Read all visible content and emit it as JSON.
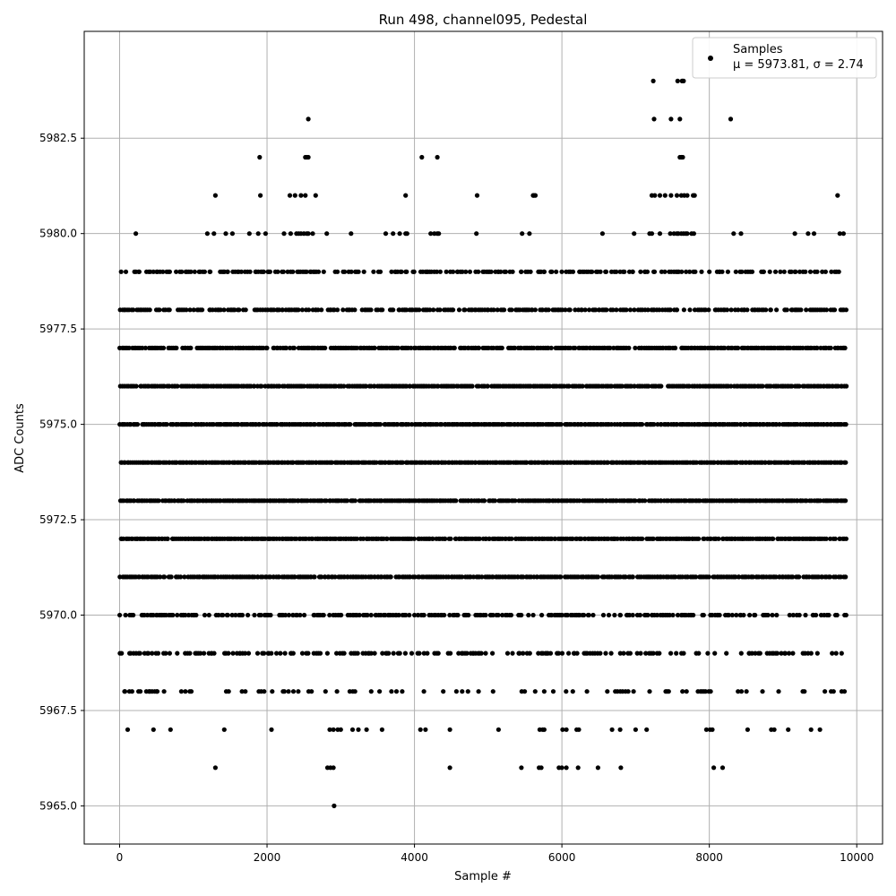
{
  "chart_data": {
    "type": "scatter",
    "title": "Run 498, channel095, Pedestal",
    "xlabel": "Sample #",
    "ylabel": "ADC Counts",
    "xlim": [
      -480,
      10350
    ],
    "ylim": [
      5964.0,
      5985.3
    ],
    "xticks": [
      0,
      2000,
      4000,
      6000,
      8000,
      10000
    ],
    "xtick_labels": [
      "0",
      "2000",
      "4000",
      "6000",
      "8000",
      "10000"
    ],
    "yticks": [
      5965.0,
      5967.5,
      5970.0,
      5972.5,
      5975.0,
      5977.5,
      5980.0,
      5982.5
    ],
    "ytick_labels": [
      "5965.0",
      "5967.5",
      "5970.0",
      "5972.5",
      "5975.0",
      "5977.5",
      "5980.0",
      "5982.5"
    ],
    "grid": true,
    "legend_position": "top-right",
    "marker_color": "#000000",
    "series": [
      {
        "name": "Samples",
        "stats_label": "μ = 5973.81, σ = 2.74",
        "x_range": [
          0,
          9840
        ],
        "mean": 5973.81,
        "std": 2.74,
        "levels": [
          {
            "y": 5984,
            "x": [
              7240,
              7570,
              7630,
              7650
            ]
          },
          {
            "y": 5983,
            "x": [
              2560,
              7250,
              7480,
              7600,
              8290
            ]
          },
          {
            "y": 5982,
            "x": [
              1900,
              2520,
              2540,
              2560,
              4100,
              4310,
              7600,
              7620,
              7640
            ]
          },
          {
            "y": 5981,
            "x": [
              1300,
              1910,
              2310,
              2380,
              2460,
              2520,
              2660,
              3880,
              4850,
              5610,
              5620,
              5640,
              7220,
              7260,
              7330,
              7400,
              7480,
              7560,
              7620,
              7660,
              7700,
              7780,
              7800,
              9740
            ]
          },
          {
            "y": 5980,
            "x": [
              220,
              1190,
              1280,
              1440,
              1530,
              1760,
              1880,
              1980,
              2230,
              2320,
              2400,
              2430,
              2460,
              2500,
              2540,
              2560,
              2620,
              2810,
              3140,
              3610,
              3710,
              3800,
              3880,
              3900,
              4220,
              4270,
              4310,
              4330,
              4840,
              5460,
              5560,
              6550,
              6980,
              7190,
              7220,
              7330,
              7470,
              7520,
              7560,
              7580,
              7620,
              7650,
              7680,
              7700,
              7760,
              7790,
              8330,
              8430,
              9160,
              9340,
              9420,
              9770,
              9820
            ]
          },
          {
            "y": 5967,
            "x": [
              110,
              460,
              690,
              1420,
              2060,
              2850,
              2900,
              2960,
              3000,
              3160,
              3240,
              3350,
              3560,
              4080,
              4150,
              4480,
              5140,
              5700,
              5740,
              5760,
              6010,
              6060,
              6200,
              6230,
              6680,
              6790,
              7000,
              7150,
              7960,
              8010,
              8040,
              8520,
              8840,
              8880,
              9070,
              9380,
              9500
            ]
          },
          {
            "y": 5966,
            "x": [
              1300,
              2820,
              2860,
              2900,
              4480,
              5450,
              5690,
              5720,
              5960,
              6000,
              6060,
              6220,
              6490,
              6800,
              8060,
              8180
            ]
          },
          {
            "y": 5965,
            "x": [
              2910
            ]
          }
        ],
        "density_levels": [
          5968,
          5969,
          5970,
          5971,
          5972,
          5973,
          5974,
          5975,
          5976,
          5977,
          5978,
          5979
        ],
        "density_weights": [
          0.22,
          0.45,
          0.6,
          0.9,
          0.92,
          0.95,
          1.0,
          0.95,
          0.92,
          0.88,
          0.7,
          0.55
        ]
      }
    ]
  }
}
